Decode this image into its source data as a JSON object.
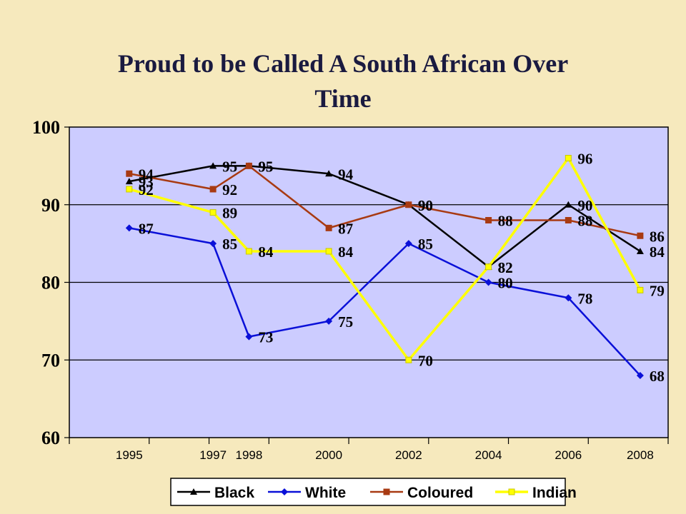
{
  "chart_data": {
    "type": "line",
    "title": "Proud to be Called A South African Over Time",
    "x": [
      1995,
      1997,
      1998,
      2000,
      2002,
      2004,
      2006,
      2008
    ],
    "x_tick_labels": [
      "1995",
      "1997",
      "1998",
      "2000",
      "2002",
      "2004",
      "2006",
      "2008"
    ],
    "ylim": [
      60,
      100
    ],
    "y_ticks": [
      60,
      70,
      80,
      90,
      100
    ],
    "grid": "horizontal",
    "legend_position": "bottom",
    "plot_background": "#ccccff",
    "series": [
      {
        "name": "Black",
        "color": "#000000",
        "marker": "triangle",
        "values": [
          93,
          95,
          95,
          94,
          90,
          82,
          90,
          84
        ]
      },
      {
        "name": "White",
        "color": "#0a10d8",
        "marker": "diamond",
        "values": [
          87,
          85,
          73,
          75,
          85,
          80,
          78,
          68
        ]
      },
      {
        "name": "Coloured",
        "color": "#a83a12",
        "marker": "square",
        "values": [
          94,
          92,
          95,
          87,
          90,
          88,
          88,
          86
        ]
      },
      {
        "name": "Indian",
        "color": "#ffff00",
        "marker": "square",
        "values": [
          92,
          89,
          84,
          84,
          70,
          82,
          96,
          79
        ]
      }
    ]
  }
}
